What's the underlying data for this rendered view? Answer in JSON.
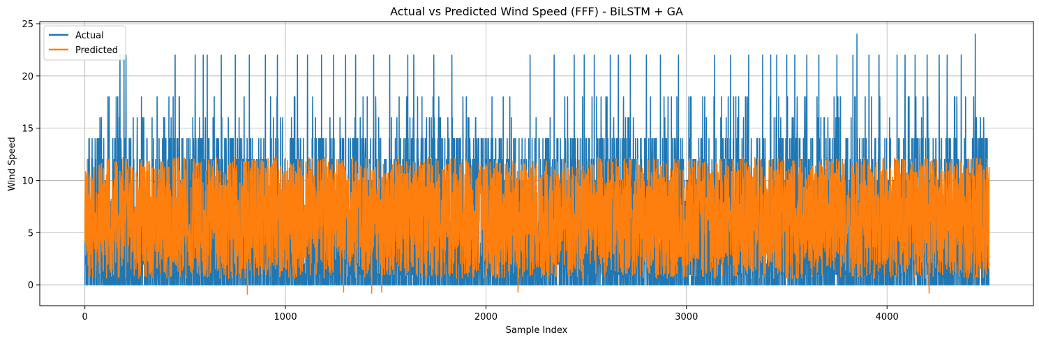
{
  "chart_data": {
    "type": "line",
    "title": "Actual vs Predicted Wind Speed (FFF) - BiLSTM + GA",
    "xlabel": "Sample Index",
    "ylabel": "Wind Speed",
    "xlim": [
      -225,
      4730
    ],
    "ylim": [
      -2,
      25.2
    ],
    "x_ticks": [
      0,
      1000,
      2000,
      3000,
      4000
    ],
    "y_ticks": [
      0,
      5,
      10,
      15,
      20,
      25
    ],
    "grid": true,
    "legend_position": "top-left",
    "n_samples": 4510,
    "series": [
      {
        "name": "Actual",
        "color": "#1f77b4",
        "summary": {
          "min": 0,
          "max": 24,
          "typical_range": [
            0,
            14
          ]
        },
        "spikes": [
          {
            "x": 175,
            "y": 22
          },
          {
            "x": 195,
            "y": 22
          },
          {
            "x": 205,
            "y": 22
          },
          {
            "x": 450,
            "y": 22
          },
          {
            "x": 550,
            "y": 22
          },
          {
            "x": 590,
            "y": 22
          },
          {
            "x": 610,
            "y": 22
          },
          {
            "x": 680,
            "y": 22
          },
          {
            "x": 750,
            "y": 22
          },
          {
            "x": 820,
            "y": 22
          },
          {
            "x": 900,
            "y": 22
          },
          {
            "x": 960,
            "y": 22
          },
          {
            "x": 1060,
            "y": 22
          },
          {
            "x": 1110,
            "y": 22
          },
          {
            "x": 1180,
            "y": 22
          },
          {
            "x": 1240,
            "y": 22
          },
          {
            "x": 1300,
            "y": 22
          },
          {
            "x": 1350,
            "y": 22
          },
          {
            "x": 1440,
            "y": 22
          },
          {
            "x": 1520,
            "y": 22
          },
          {
            "x": 1610,
            "y": 22
          },
          {
            "x": 1640,
            "y": 22
          },
          {
            "x": 1740,
            "y": 22
          },
          {
            "x": 1830,
            "y": 22
          },
          {
            "x": 2220,
            "y": 22
          },
          {
            "x": 2340,
            "y": 22
          },
          {
            "x": 2440,
            "y": 22
          },
          {
            "x": 2490,
            "y": 22
          },
          {
            "x": 2540,
            "y": 22
          },
          {
            "x": 2620,
            "y": 22
          },
          {
            "x": 2660,
            "y": 22
          },
          {
            "x": 2720,
            "y": 22
          },
          {
            "x": 2800,
            "y": 22
          },
          {
            "x": 2870,
            "y": 22
          },
          {
            "x": 2960,
            "y": 22
          },
          {
            "x": 3140,
            "y": 22
          },
          {
            "x": 3220,
            "y": 22
          },
          {
            "x": 3310,
            "y": 22
          },
          {
            "x": 3380,
            "y": 22
          },
          {
            "x": 3420,
            "y": 22
          },
          {
            "x": 3450,
            "y": 22
          },
          {
            "x": 3500,
            "y": 22
          },
          {
            "x": 3540,
            "y": 22
          },
          {
            "x": 3600,
            "y": 22
          },
          {
            "x": 3660,
            "y": 22
          },
          {
            "x": 3750,
            "y": 22
          },
          {
            "x": 3830,
            "y": 22
          },
          {
            "x": 3850,
            "y": 24
          },
          {
            "x": 3910,
            "y": 22
          },
          {
            "x": 3960,
            "y": 22
          },
          {
            "x": 4050,
            "y": 22
          },
          {
            "x": 4090,
            "y": 22
          },
          {
            "x": 4140,
            "y": 22
          },
          {
            "x": 4200,
            "y": 22
          },
          {
            "x": 4260,
            "y": 22
          },
          {
            "x": 4300,
            "y": 22
          },
          {
            "x": 4370,
            "y": 22
          },
          {
            "x": 4440,
            "y": 24
          }
        ]
      },
      {
        "name": "Predicted",
        "color": "#ff7f0e",
        "summary": {
          "min": -0.9,
          "max": 13.6,
          "typical_range": [
            0.5,
            12.5
          ]
        },
        "dips": [
          {
            "x": 810,
            "y": -0.9
          },
          {
            "x": 1290,
            "y": -0.7
          },
          {
            "x": 1430,
            "y": -0.8
          },
          {
            "x": 1480,
            "y": -0.7
          },
          {
            "x": 2160,
            "y": -0.7
          },
          {
            "x": 4210,
            "y": -0.8
          }
        ]
      }
    ]
  }
}
